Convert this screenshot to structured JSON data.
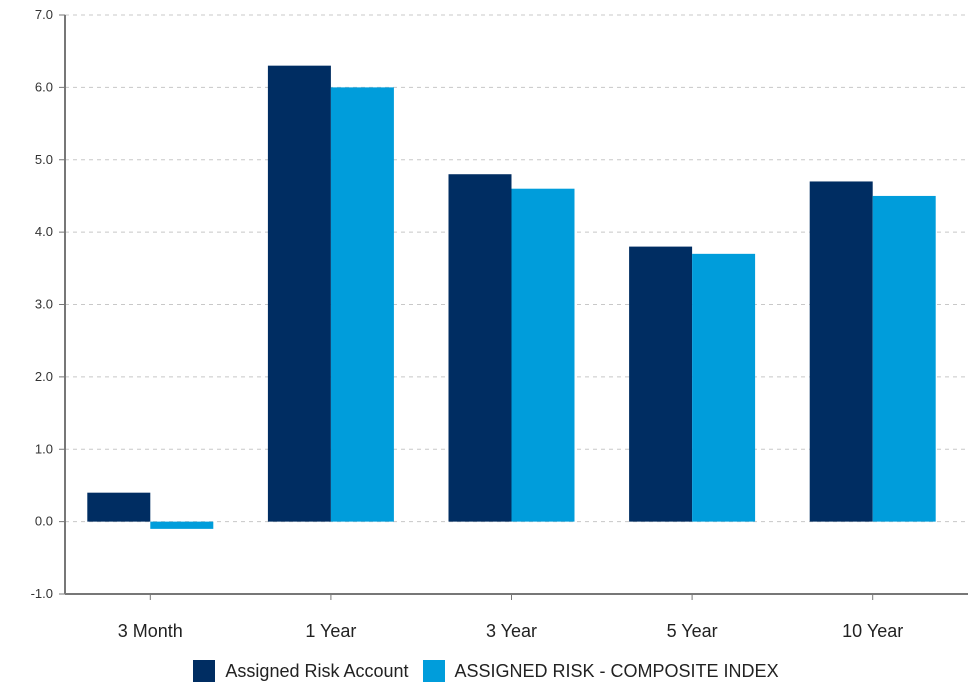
{
  "chart_data": {
    "type": "bar",
    "categories": [
      "3 Month",
      "1 Year",
      "3 Year",
      "5 Year",
      "10 Year"
    ],
    "series": [
      {
        "name": "Assigned Risk Account",
        "color": "#002d62",
        "values": [
          0.4,
          6.3,
          4.8,
          3.8,
          4.7
        ]
      },
      {
        "name": "ASSIGNED RISK - COMPOSITE INDEX",
        "color": "#009ddb",
        "values": [
          -0.1,
          6.0,
          4.6,
          3.7,
          4.5
        ]
      }
    ],
    "ylim": [
      -1.0,
      7.0
    ],
    "yticks": [
      "-1.0",
      "0.0",
      "1.0",
      "2.0",
      "3.0",
      "4.0",
      "5.0",
      "6.0",
      "7.0"
    ],
    "grid": true,
    "legend": "bottom-center"
  }
}
